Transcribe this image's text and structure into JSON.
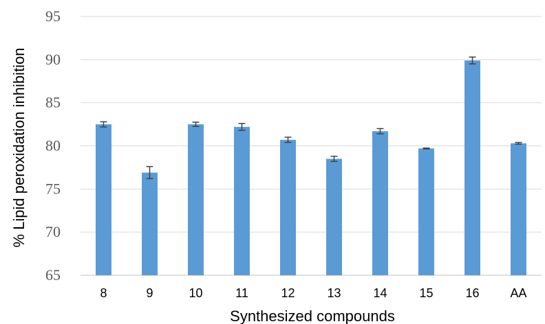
{
  "chart_data": {
    "type": "bar",
    "title": "",
    "xlabel": "Synthesized compounds",
    "ylabel": "% Lipid peroxidation inhibition",
    "ylim": [
      65,
      95
    ],
    "yticks": [
      65,
      70,
      75,
      80,
      85,
      90,
      95
    ],
    "grid": true,
    "legend": "none",
    "bar_color": "#5b9bd5",
    "categories": [
      "8",
      "9",
      "10",
      "11",
      "12",
      "13",
      "14",
      "15",
      "16",
      "AA"
    ],
    "values": [
      82.5,
      76.9,
      82.5,
      82.2,
      80.7,
      78.5,
      81.7,
      79.7,
      89.9,
      80.3
    ],
    "errors": [
      0.3,
      0.7,
      0.25,
      0.4,
      0.3,
      0.3,
      0.3,
      0.05,
      0.4,
      0.1
    ]
  }
}
